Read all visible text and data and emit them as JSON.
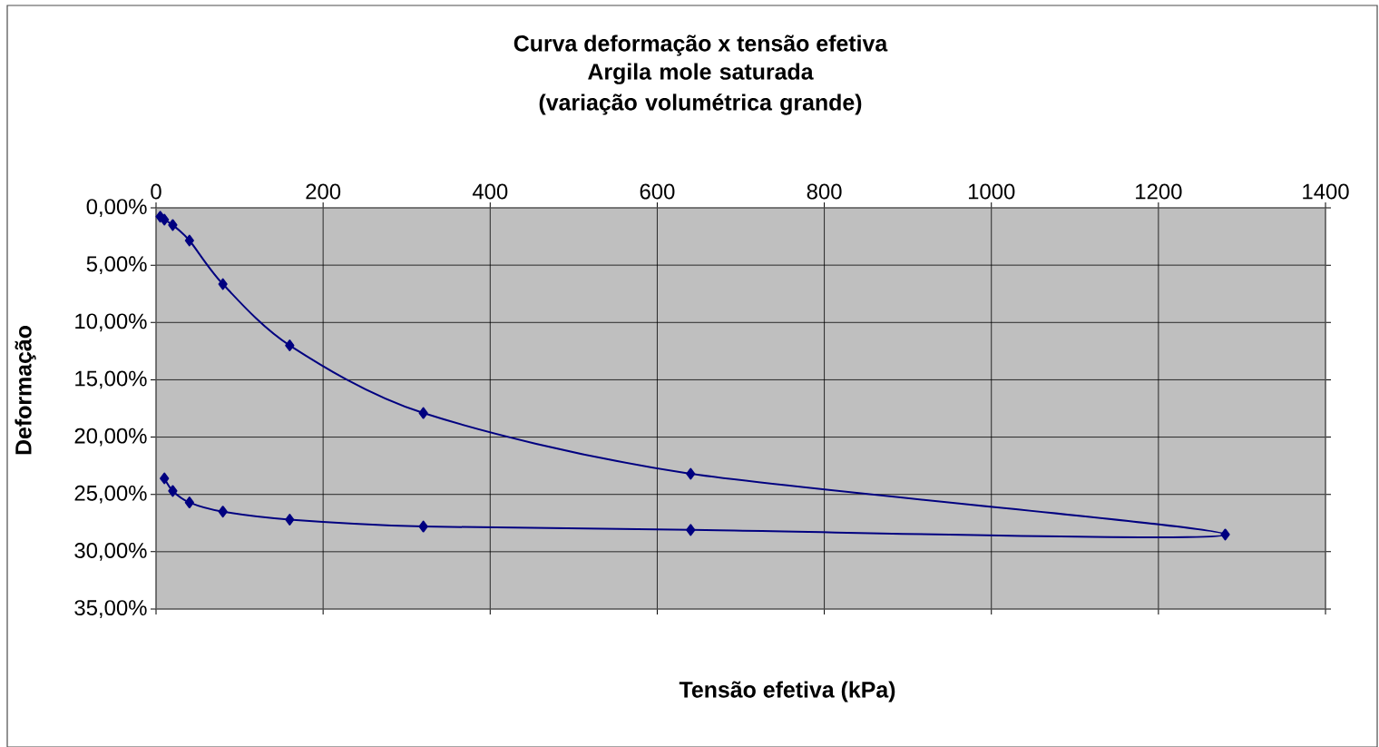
{
  "chart_data": {
    "type": "line",
    "title": "Curva deformação x tensão efetiva",
    "subtitle": "Argila mole saturada (variação volumétrica grande)",
    "xlabel": "Tensão efetiva (kPa)",
    "ylabel": "Deformação",
    "series": [
      {
        "color": "#000080",
        "x": [
          5,
          10,
          20,
          40,
          80,
          160,
          320,
          640,
          1280,
          640,
          320,
          160,
          80,
          40,
          20,
          10
        ],
        "values": [
          0.77,
          1.03,
          1.5,
          2.85,
          6.65,
          12.0,
          17.9,
          23.2,
          28.5,
          28.1,
          27.8,
          27.2,
          26.5,
          25.7,
          24.7,
          23.6
        ]
      }
    ],
    "xlim": [
      0,
      1400
    ],
    "xticks": [
      0,
      200,
      400,
      600,
      800,
      1000,
      1200,
      1400
    ],
    "ylim": [
      35,
      0
    ],
    "yticks": [
      {
        "value": 0,
        "label": "0,00%"
      },
      {
        "value": 5,
        "label": "5,00%"
      },
      {
        "value": 10,
        "label": "10,00%"
      },
      {
        "value": 15,
        "label": "15,00%"
      },
      {
        "value": 20,
        "label": "20,00%"
      },
      {
        "value": 25,
        "label": "25,00%"
      },
      {
        "value": 30,
        "label": "30,00%"
      },
      {
        "value": 35,
        "label": "35,00%"
      }
    ],
    "grid": true,
    "marker": "diamond",
    "line_style": "solid"
  }
}
